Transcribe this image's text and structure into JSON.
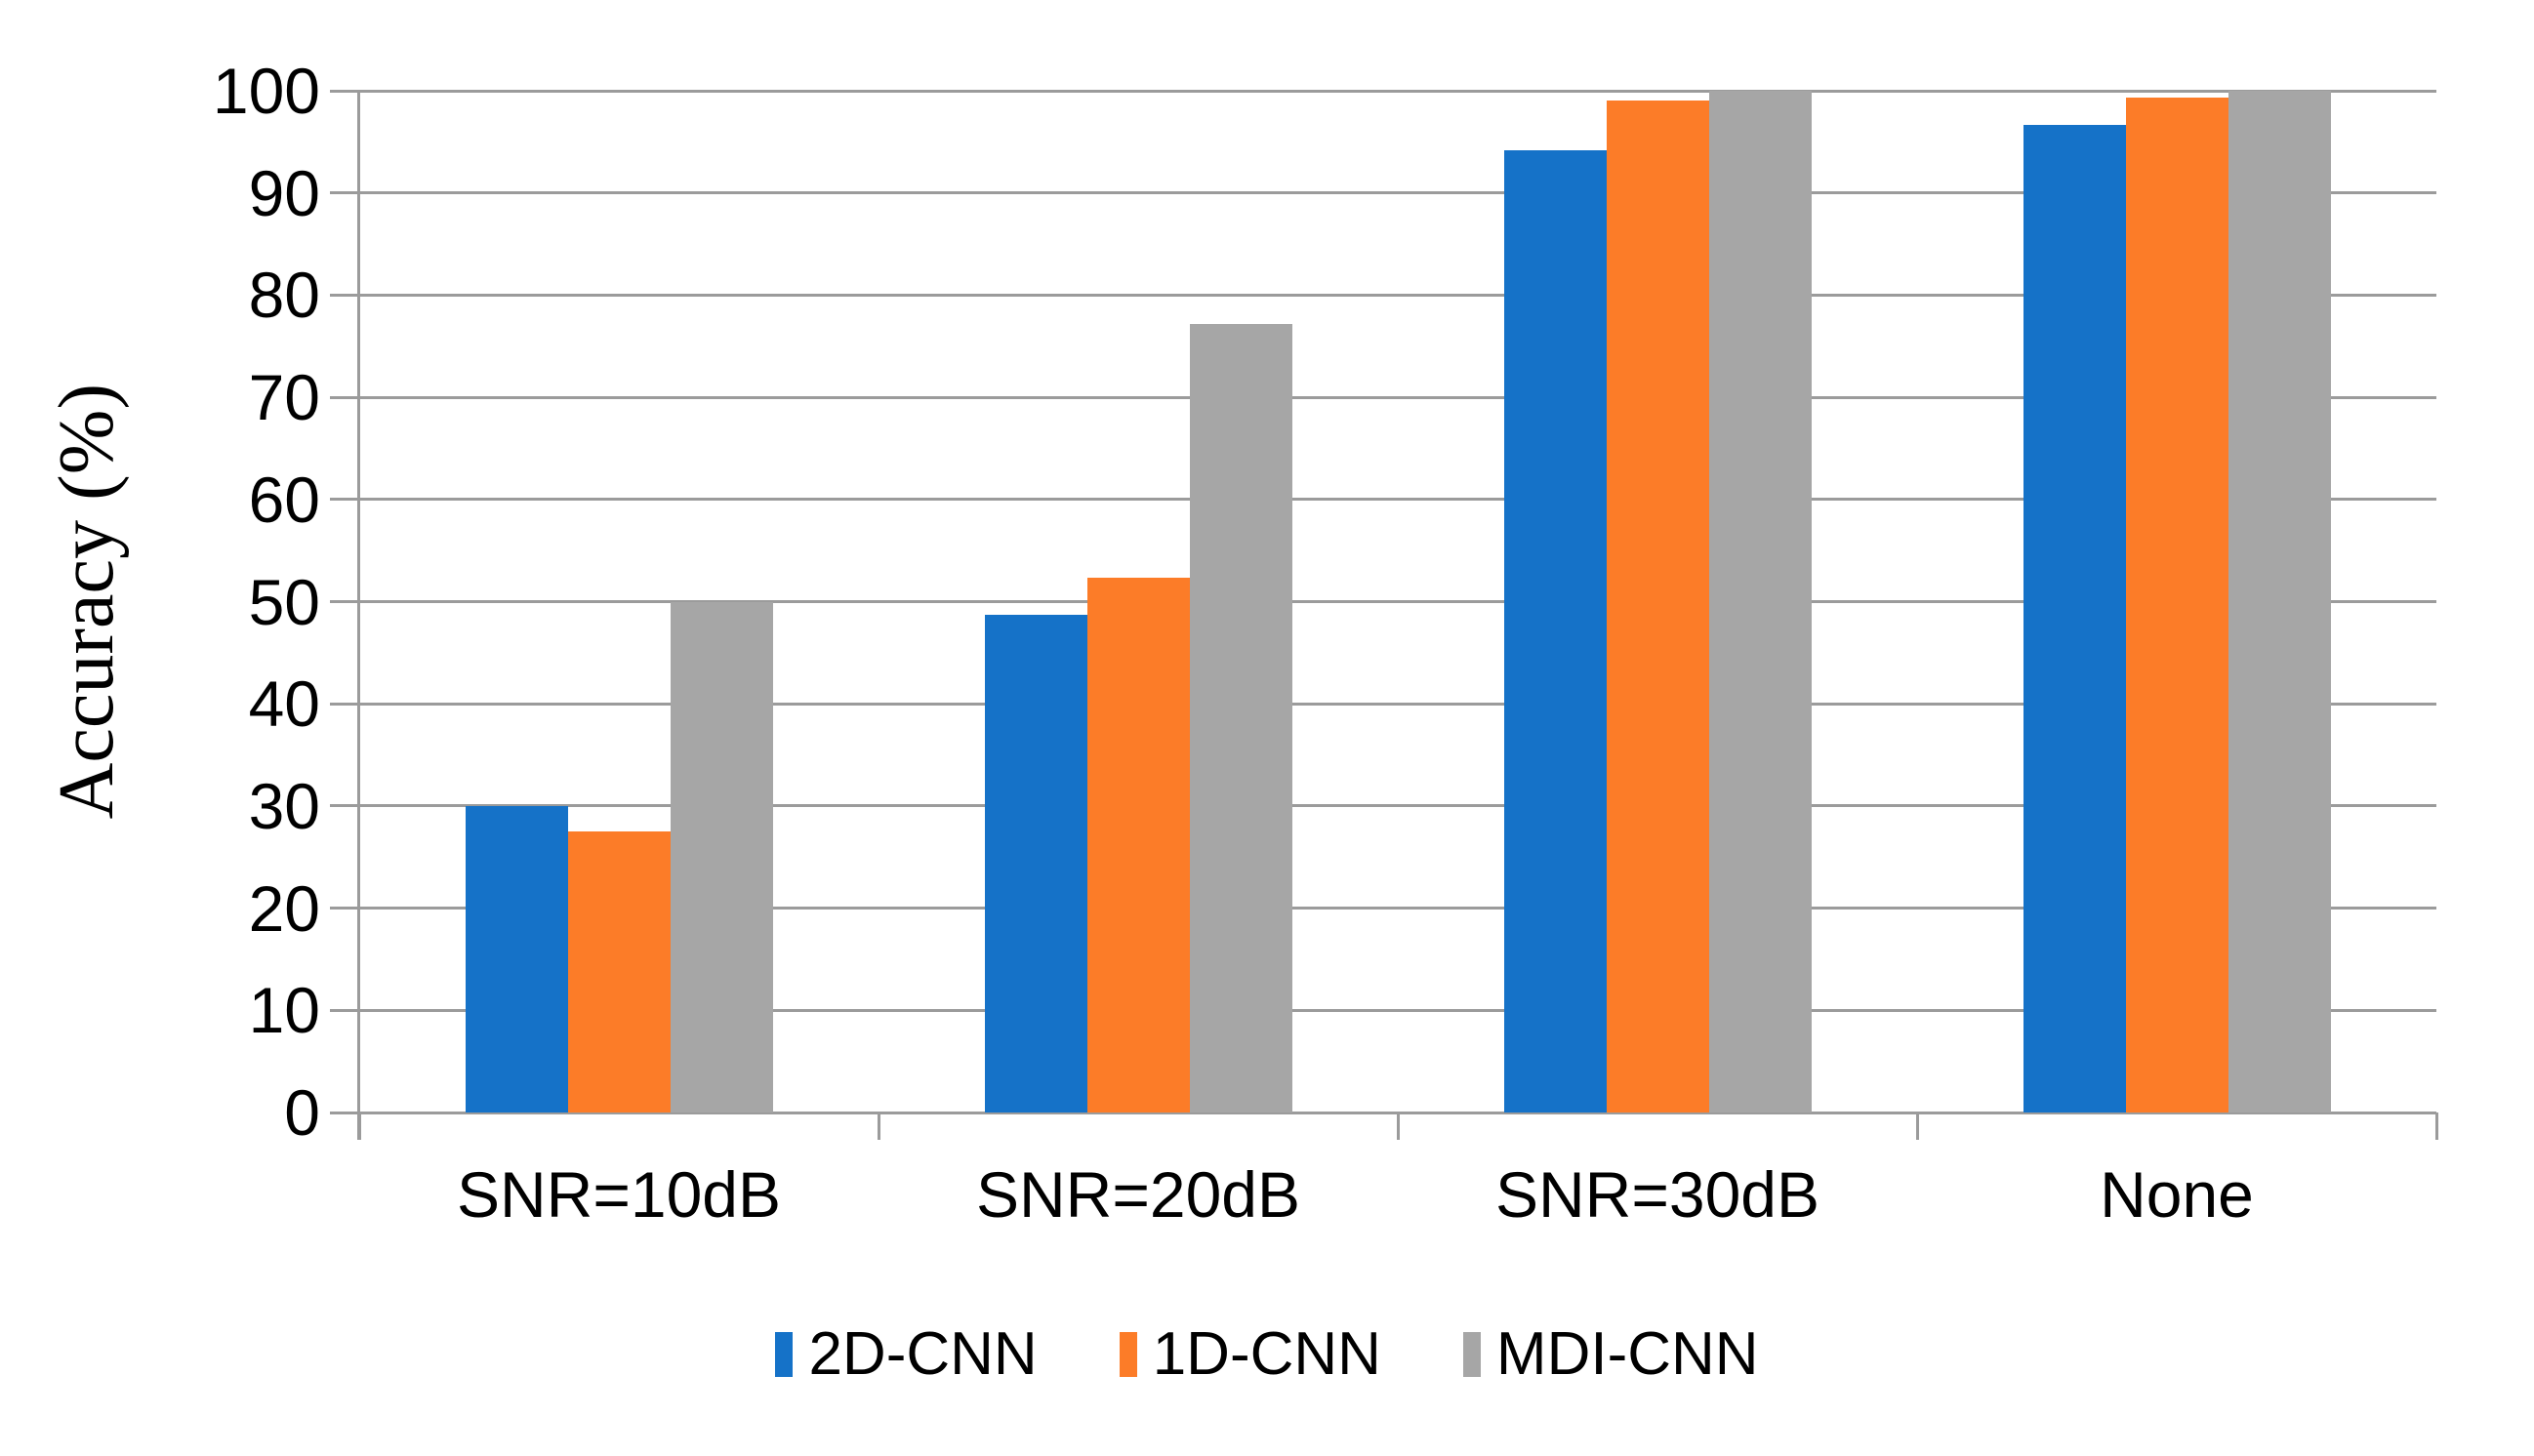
{
  "chart_data": {
    "type": "bar",
    "title": "",
    "xlabel": "",
    "ylabel": "Accuracy (%)",
    "ylim": [
      0,
      100
    ],
    "yticks": [
      0,
      10,
      20,
      30,
      40,
      50,
      60,
      70,
      80,
      90,
      100
    ],
    "grid": "horizontal",
    "legend_position": "bottom",
    "categories": [
      "SNR=10dB",
      "SNR=20dB",
      "SNR=30dB",
      "None"
    ],
    "series": [
      {
        "name": "2D-CNN",
        "color": "#1572C8",
        "values": [
          30,
          48.7,
          94.2,
          96.7
        ]
      },
      {
        "name": "1D-CNN",
        "color": "#FC7C28",
        "values": [
          27.5,
          52.3,
          99,
          99.3
        ]
      },
      {
        "name": "MDI-CNN",
        "color": "#A6A6A6",
        "values": [
          50,
          77.2,
          100,
          100
        ]
      }
    ],
    "colors": {
      "background": "#FFFFFF",
      "gridline": "#9B9B9B",
      "axis": "#9B9B9B",
      "text": "#000000"
    }
  }
}
